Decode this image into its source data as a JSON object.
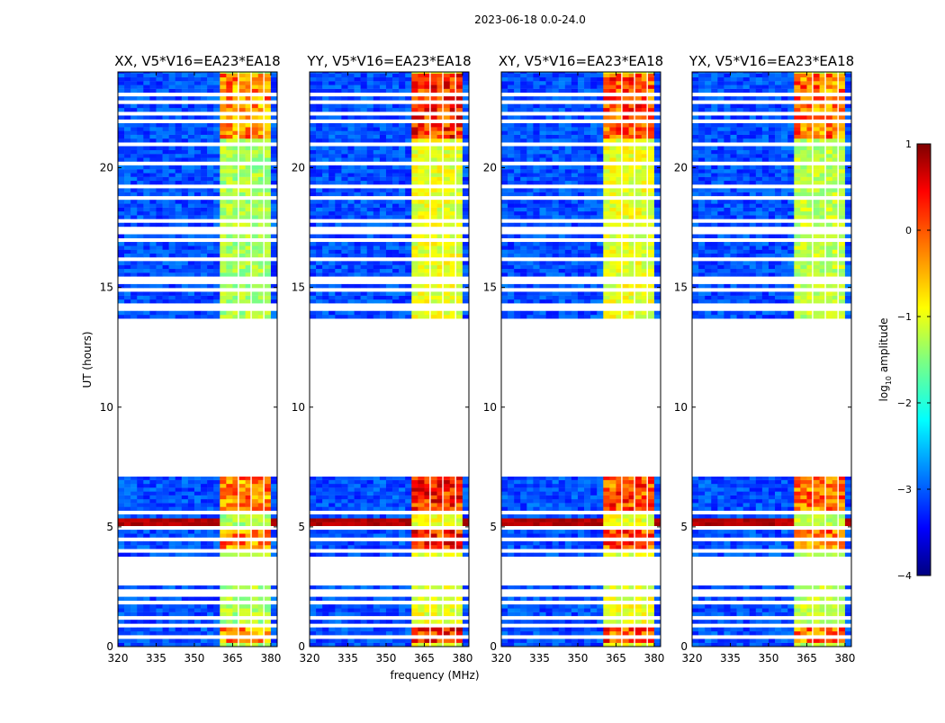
{
  "chart_data": {
    "type": "heatmap",
    "suptitle": "2023-06-18 0.0-24.0",
    "xlabel": "frequency (MHz)",
    "ylabel": "UT (hours)",
    "xlim": [
      320,
      382.5
    ],
    "ylim": [
      0,
      24
    ],
    "xticks": [
      320,
      335,
      350,
      365,
      380
    ],
    "xtick_labels": [
      "320",
      "335",
      "350",
      "365",
      "380"
    ],
    "yticks": [
      0,
      5,
      10,
      15,
      20
    ],
    "ytick_labels": [
      "0",
      "5",
      "10",
      "15",
      "20"
    ],
    "panels": [
      {
        "title": "XX, V5*V16=EA23*EA18",
        "band_level": -1.3,
        "peak_level": 0.3
      },
      {
        "title": "YY, V5*V16=EA23*EA18",
        "band_level": -1.0,
        "peak_level": 0.8
      },
      {
        "title": "XY, V5*V16=EA23*EA18",
        "band_level": -1.0,
        "peak_level": 0.6
      },
      {
        "title": "YX, V5*V16=EA23*EA18",
        "band_level": -1.2,
        "peak_level": 0.4
      }
    ],
    "data_coverage_hours": [
      [
        0,
        2.55
      ],
      [
        3.6,
        7.1
      ],
      [
        13.7,
        24
      ]
    ],
    "flagged_rows_hours": [
      0.35,
      0.95,
      1.15,
      1.9,
      2.1,
      2.3,
      3.75,
      4.05,
      4.45,
      4.9,
      5.6,
      14.05,
      14.3,
      14.9,
      15.2,
      15.35,
      16.1,
      16.2,
      17.0,
      17.35,
      17.45,
      17.75,
      18.8,
      19.2,
      19.95,
      20.15,
      21.0,
      21.9,
      22.3,
      22.5,
      22.7,
      23.0
    ],
    "rfi_band_mhz": [
      361,
      380
    ],
    "rfi_strong_hours": [
      [
        0.2,
        1.0
      ],
      [
        4.0,
        5.0
      ],
      [
        5.6,
        7.1
      ],
      [
        21.2,
        24
      ]
    ],
    "colorbar": {
      "label": "log10 amplitude",
      "label_main": "log",
      "label_sub": "10",
      "label_rest": " amplitude",
      "min": -4,
      "max": 1,
      "ticks": [
        -4,
        -3,
        -2,
        -1,
        0,
        1
      ],
      "tick_labels": [
        "−4",
        "−3",
        "−2",
        "−1",
        "0",
        "1"
      ],
      "colormap": "jet"
    }
  }
}
